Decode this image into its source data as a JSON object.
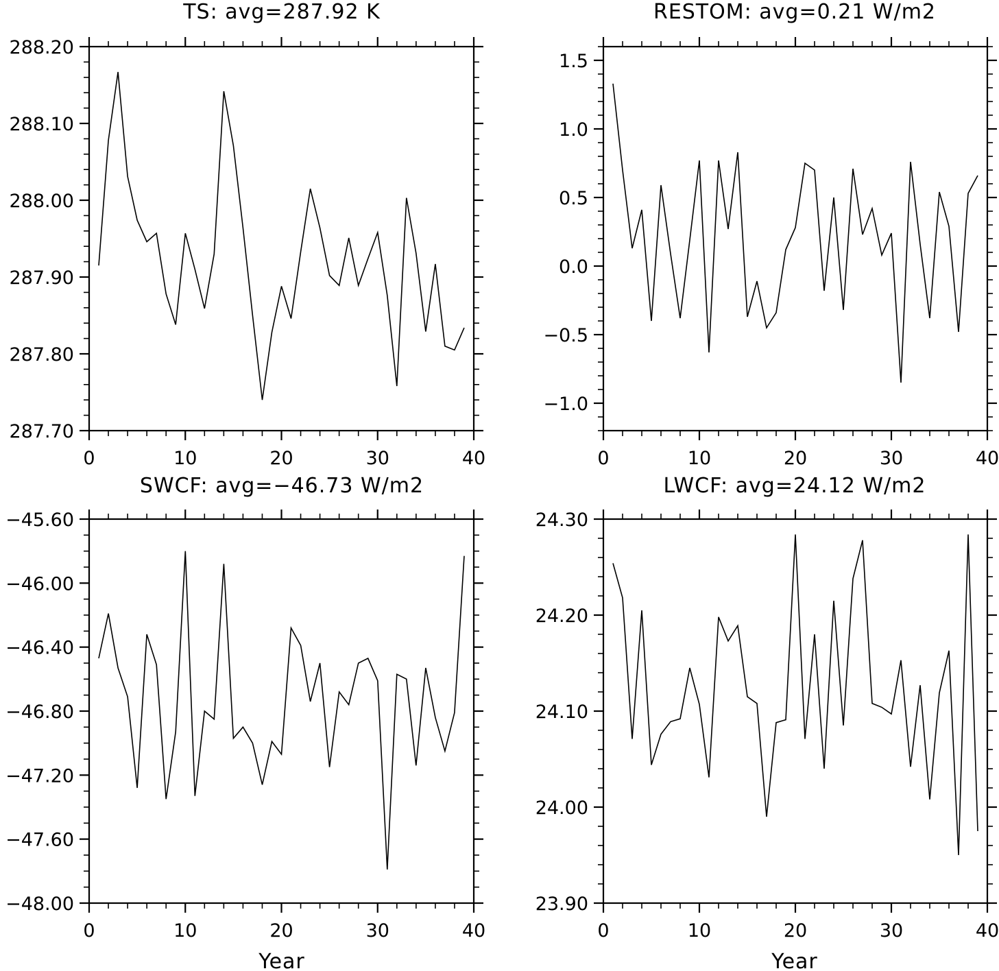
{
  "chart_data": [
    {
      "type": "line",
      "title": "TS: avg=287.92 K",
      "xlabel": "",
      "ylabel": "",
      "xlim": [
        0,
        40
      ],
      "ylim": [
        287.7,
        288.2
      ],
      "xticks": [
        0,
        10,
        20,
        30,
        40
      ],
      "xtick_labels": [
        "0",
        "10",
        "20",
        "30",
        "40"
      ],
      "yticks": [
        287.7,
        287.8,
        287.9,
        288.0,
        288.1,
        288.2
      ],
      "ytick_labels": [
        "287.70",
        "287.80",
        "287.90",
        "288.00",
        "288.10",
        "288.20"
      ],
      "y_minor_step": 0.02,
      "x_minor_step": 2,
      "grid": false,
      "series": [
        {
          "x": [
            1,
            2,
            3,
            4,
            5,
            6,
            7,
            8,
            9,
            10,
            11,
            12,
            13,
            14,
            15,
            16,
            17,
            18,
            19,
            20,
            21,
            22,
            23,
            24,
            25,
            26,
            27,
            28,
            29,
            30,
            31,
            32,
            33,
            34,
            35,
            36,
            37,
            38,
            39
          ],
          "values": [
            287.915,
            288.078,
            288.167,
            288.031,
            287.974,
            287.946,
            287.957,
            287.878,
            287.838,
            287.957,
            287.91,
            287.859,
            287.93,
            288.142,
            288.071,
            287.964,
            287.85,
            287.74,
            287.828,
            287.888,
            287.846,
            287.933,
            288.015,
            287.964,
            287.902,
            287.889,
            287.951,
            287.889,
            287.924,
            287.958,
            287.876,
            287.758,
            288.003,
            287.931,
            287.829,
            287.917,
            287.81,
            287.805,
            287.834
          ]
        }
      ]
    },
    {
      "type": "line",
      "title": "RESTOM: avg=0.21 W/m2",
      "xlabel": "",
      "ylabel": "",
      "xlim": [
        0,
        40
      ],
      "ylim": [
        -1.2,
        1.6
      ],
      "xticks": [
        0,
        10,
        20,
        30,
        40
      ],
      "xtick_labels": [
        "0",
        "10",
        "20",
        "30",
        "40"
      ],
      "yticks": [
        -1.0,
        -0.5,
        0.0,
        0.5,
        1.0,
        1.5
      ],
      "ytick_labels": [
        "−1.0",
        "−0.5",
        "0.0",
        "0.5",
        "1.0",
        "1.5"
      ],
      "y_minor_step": 0.1,
      "x_minor_step": 2,
      "grid": false,
      "series": [
        {
          "x": [
            1,
            2,
            3,
            4,
            5,
            6,
            7,
            8,
            9,
            10,
            11,
            12,
            13,
            14,
            15,
            16,
            17,
            18,
            19,
            20,
            21,
            22,
            23,
            24,
            25,
            26,
            27,
            28,
            29,
            30,
            31,
            32,
            33,
            34,
            35,
            36,
            37,
            38,
            39
          ],
          "values": [
            1.33,
            0.7,
            0.13,
            0.41,
            -0.4,
            0.59,
            0.09,
            -0.38,
            0.19,
            0.77,
            -0.63,
            0.77,
            0.27,
            0.83,
            -0.37,
            -0.11,
            -0.45,
            -0.34,
            0.12,
            0.28,
            0.75,
            0.7,
            -0.18,
            0.5,
            -0.32,
            0.71,
            0.23,
            0.42,
            0.08,
            0.24,
            -0.85,
            0.76,
            0.16,
            -0.38,
            0.54,
            0.29,
            -0.48,
            0.53,
            0.66
          ]
        }
      ]
    },
    {
      "type": "line",
      "title": "SWCF: avg=−46.73 W/m2",
      "xlabel": "Year",
      "ylabel": "",
      "xlim": [
        0,
        40
      ],
      "ylim": [
        -48.0,
        -45.6
      ],
      "xticks": [
        0,
        10,
        20,
        30,
        40
      ],
      "xtick_labels": [
        "0",
        "10",
        "20",
        "30",
        "40"
      ],
      "yticks": [
        -48.0,
        -47.6,
        -47.2,
        -46.8,
        -46.4,
        -46.0,
        -45.6
      ],
      "ytick_labels": [
        "−48.00",
        "−47.60",
        "−47.20",
        "−46.80",
        "−46.40",
        "−46.00",
        "−45.60"
      ],
      "y_minor_step": 0.1,
      "x_minor_step": 2,
      "grid": false,
      "series": [
        {
          "x": [
            1,
            2,
            3,
            4,
            5,
            6,
            7,
            8,
            9,
            10,
            11,
            12,
            13,
            14,
            15,
            16,
            17,
            18,
            19,
            20,
            21,
            22,
            23,
            24,
            25,
            26,
            27,
            28,
            29,
            30,
            31,
            32,
            33,
            34,
            35,
            36,
            37,
            38,
            39
          ],
          "values": [
            -46.47,
            -46.19,
            -46.53,
            -46.71,
            -47.28,
            -46.32,
            -46.51,
            -47.35,
            -46.93,
            -45.8,
            -47.33,
            -46.8,
            -46.85,
            -45.88,
            -46.97,
            -46.9,
            -47.0,
            -47.26,
            -46.99,
            -47.07,
            -46.28,
            -46.39,
            -46.74,
            -46.5,
            -47.15,
            -46.68,
            -46.76,
            -46.5,
            -46.47,
            -46.61,
            -47.79,
            -46.57,
            -46.6,
            -47.14,
            -46.53,
            -46.84,
            -47.05,
            -46.81,
            -45.83
          ]
        }
      ]
    },
    {
      "type": "line",
      "title": "LWCF: avg=24.12 W/m2",
      "xlabel": "Year",
      "ylabel": "",
      "xlim": [
        0,
        40
      ],
      "ylim": [
        23.9,
        24.3
      ],
      "xticks": [
        0,
        10,
        20,
        30,
        40
      ],
      "xtick_labels": [
        "0",
        "10",
        "20",
        "30",
        "40"
      ],
      "yticks": [
        23.9,
        24.0,
        24.1,
        24.2,
        24.3
      ],
      "ytick_labels": [
        "23.90",
        "24.00",
        "24.10",
        "24.20",
        "24.30"
      ],
      "y_minor_step": 0.02,
      "x_minor_step": 2,
      "grid": false,
      "series": [
        {
          "x": [
            1,
            2,
            3,
            4,
            5,
            6,
            7,
            8,
            9,
            10,
            11,
            12,
            13,
            14,
            15,
            16,
            17,
            18,
            19,
            20,
            21,
            22,
            23,
            24,
            25,
            26,
            27,
            28,
            29,
            30,
            31,
            32,
            33,
            34,
            35,
            36,
            37,
            38,
            39
          ],
          "values": [
            24.254,
            24.218,
            24.071,
            24.205,
            24.044,
            24.076,
            24.089,
            24.092,
            24.145,
            24.107,
            24.031,
            24.198,
            24.173,
            24.189,
            24.115,
            24.108,
            23.99,
            24.088,
            24.091,
            24.284,
            24.071,
            24.18,
            24.04,
            24.215,
            24.085,
            24.238,
            24.278,
            24.108,
            24.104,
            24.097,
            24.153,
            24.042,
            24.127,
            24.008,
            24.119,
            24.163,
            23.95,
            24.284,
            23.975
          ]
        }
      ]
    }
  ]
}
